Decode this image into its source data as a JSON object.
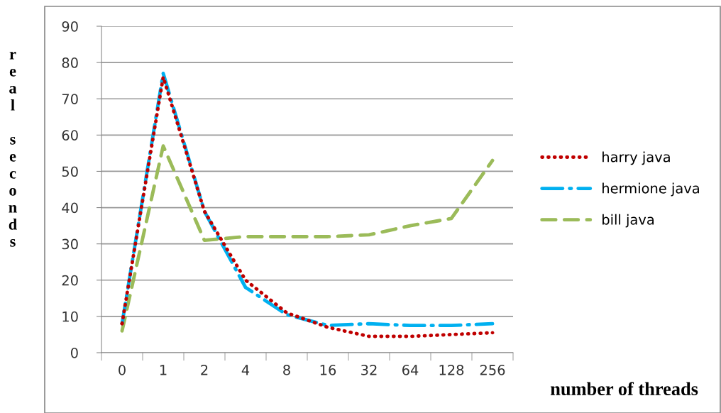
{
  "chart_data": {
    "type": "line",
    "xlabel": "number of threads",
    "ylabel": "real seconds",
    "categories": [
      "0",
      "1",
      "2",
      "4",
      "8",
      "16",
      "32",
      "64",
      "128",
      "256"
    ],
    "series": [
      {
        "name": "harry java",
        "color": "#c00000",
        "line_style": "dotted",
        "values": [
          8,
          76,
          39,
          20,
          11,
          7,
          4.5,
          4.5,
          5,
          5.5
        ]
      },
      {
        "name": "hermione java",
        "color": "#00b0f0",
        "line_style": "dashdot",
        "values": [
          8,
          77,
          39,
          18,
          10.5,
          7.5,
          8,
          7.5,
          7.5,
          8
        ]
      },
      {
        "name": "bill java",
        "color": "#9bbb59",
        "line_style": "dashed",
        "values": [
          6,
          57,
          31,
          32,
          32,
          32,
          32.5,
          35,
          37,
          53
        ]
      }
    ],
    "ylim": [
      0,
      90
    ],
    "yticks": [
      0,
      10,
      20,
      30,
      40,
      50,
      60,
      70,
      80,
      90
    ],
    "grid": "y",
    "legend": "right"
  }
}
